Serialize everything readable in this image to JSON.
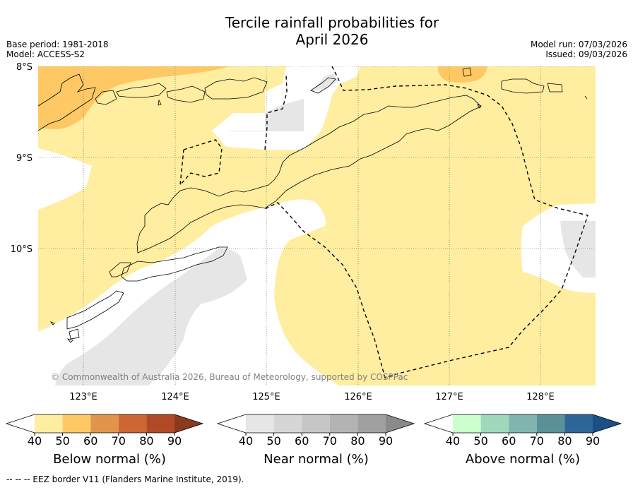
{
  "title_line1": "Tercile rainfall probabilities for",
  "title_line2": "April 2026",
  "base_period": "Base period: 1981-2018",
  "model": "Model: ACCESS-S2",
  "model_run": "Model run: 07/03/2026",
  "issued": "Issued: 09/03/2026",
  "lat_labels": [
    "8°S",
    "9°S",
    "10°S"
  ],
  "lon_labels": [
    "123°E",
    "124°E",
    "125°E",
    "126°E",
    "127°E",
    "128°E"
  ],
  "copyright": "© Commonwealth of Australia 2026, Bureau of Meteorology, supported by COSPPac",
  "colorbars": [
    {
      "title": "Below normal (%)",
      "ticks": [
        "40",
        "50",
        "60",
        "70",
        "80",
        "90"
      ],
      "colors": [
        "#ffeda0",
        "#fec965",
        "#e0954a",
        "#cc6633",
        "#b04a26",
        "#8c3a1e"
      ]
    },
    {
      "title": "Near normal (%)",
      "ticks": [
        "40",
        "50",
        "60",
        "70",
        "80",
        "90"
      ],
      "colors": [
        "#e6e6e6",
        "#d6d6d6",
        "#c6c6c6",
        "#b3b3b3",
        "#a0a0a0",
        "#8a8a8a"
      ]
    },
    {
      "title": "Above normal (%)",
      "ticks": [
        "40",
        "50",
        "60",
        "70",
        "80",
        "90"
      ],
      "colors": [
        "#ccffcc",
        "#a0d8bc",
        "#7fb5ae",
        "#5a9098",
        "#2f6498",
        "#1b4f85"
      ]
    }
  ],
  "footnote": "--  --  -- EEZ border V11 (Flanders Marine Institute, 2019)."
}
